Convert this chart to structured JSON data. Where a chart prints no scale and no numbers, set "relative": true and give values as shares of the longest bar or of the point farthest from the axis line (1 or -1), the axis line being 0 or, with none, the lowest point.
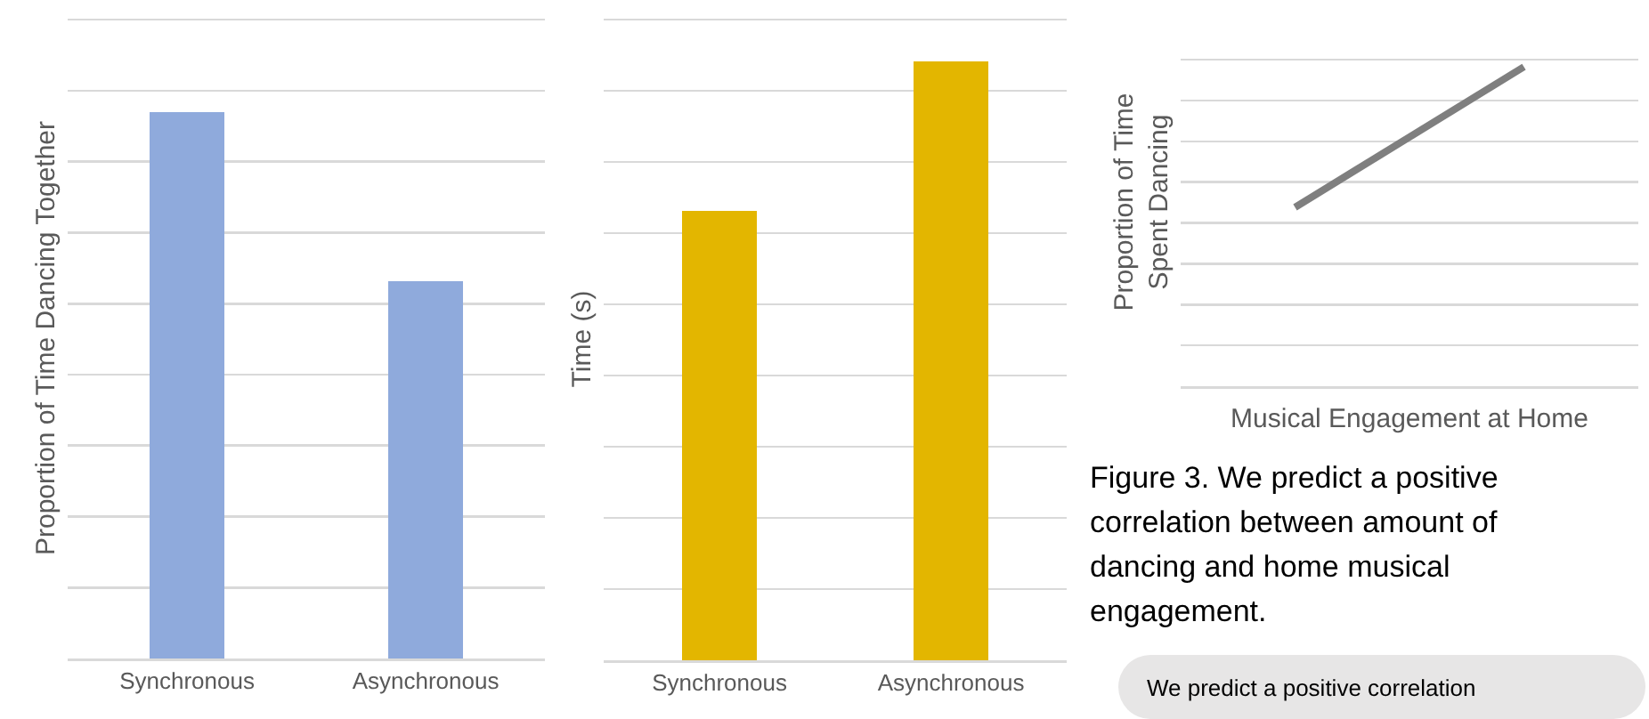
{
  "chart_data": [
    {
      "type": "bar",
      "ylabel": "Proportion of Time Dancing Together",
      "categories": [
        "Synchronous",
        "Asynchronous"
      ],
      "relative": true,
      "grid": "y",
      "tick_labels": "x",
      "series": [
        {
          "color": "#8faadc",
          "values": [
            1,
            0.69
          ]
        }
      ]
    },
    {
      "type": "bar",
      "ylabel": "Time (s)",
      "categories": [
        "Synchronous",
        "Asynchronous"
      ],
      "relative": true,
      "grid": "y",
      "tick_labels": "x",
      "series": [
        {
          "color": "#e3b600",
          "values": [
            0.75,
            1
          ]
        }
      ]
    },
    {
      "type": "line",
      "ylabel": "Proportion of Time\nSpent Dancing",
      "xlabel": "Musical Engagement at Home",
      "categories": [
        null,
        null
      ],
      "relative": true,
      "grid": "y",
      "tick_labels": false,
      "marker": "none",
      "line_style": "solid",
      "series": [
        {
          "color": "#7f7f7f",
          "values": [
            0.56,
            1
          ]
        }
      ],
      "annotations": [
        "Figure 3. We predict a positive correlation between amount of dancing and home musical engagement.",
        "We predict a positive correlation"
      ]
    }
  ]
}
